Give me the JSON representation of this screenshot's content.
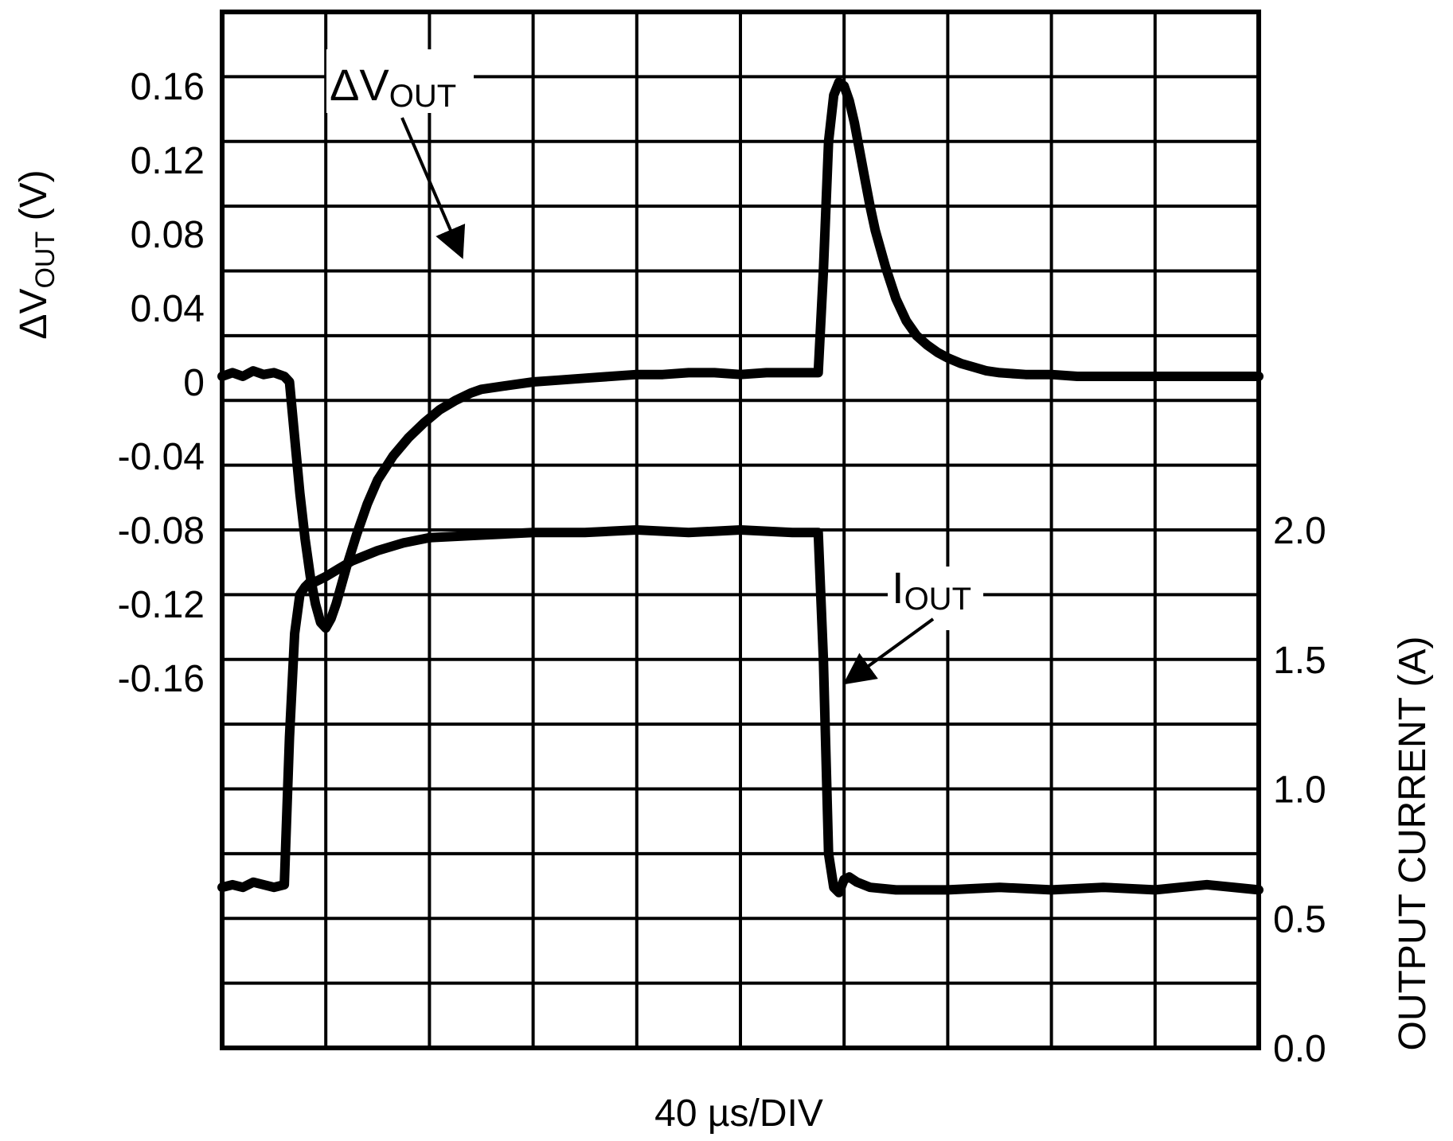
{
  "chart_data": {
    "type": "line",
    "title": "",
    "xlabel": "40 µs/DIV",
    "x_units": "µs",
    "x_per_div": 40,
    "x_range": [
      0,
      400
    ],
    "grid": true,
    "grid_divisions": {
      "x": 10,
      "y": 16
    },
    "left_axis": {
      "label_main": "ΔV",
      "label_sub": "OUT",
      "label_tail": " (V)",
      "ylim": [
        -0.36,
        0.2
      ],
      "ticks": [
        "0.16",
        "0.12",
        "0.08",
        "0.04",
        "0",
        "-0.04",
        "-0.08",
        "-0.12",
        "-0.16"
      ],
      "tick_values": [
        0.16,
        0.12,
        0.08,
        0.04,
        0,
        -0.04,
        -0.08,
        -0.12,
        -0.16
      ]
    },
    "right_axis": {
      "label": "OUTPUT CURRENT (A)",
      "ylim": [
        0.0,
        4.0
      ],
      "ticks": [
        "2.0",
        "1.5",
        "1.0",
        "0.5",
        "0.0"
      ],
      "tick_values": [
        2.0,
        1.5,
        1.0,
        0.5,
        0.0
      ]
    },
    "series": [
      {
        "name": "ΔVOUT",
        "axis": "left",
        "annotation_main": "ΔV",
        "annotation_sub": "OUT",
        "x": [
          0,
          4,
          8,
          12,
          16,
          20,
          24,
          26,
          28,
          30,
          32,
          34,
          36,
          38,
          40,
          42,
          44,
          48,
          52,
          56,
          60,
          66,
          72,
          78,
          84,
          90,
          96,
          100,
          110,
          120,
          130,
          140,
          150,
          160,
          170,
          180,
          190,
          200,
          210,
          220,
          230,
          232,
          234,
          236,
          238,
          240,
          242,
          244,
          246,
          248,
          250,
          252,
          256,
          260,
          264,
          268,
          272,
          276,
          280,
          285,
          290,
          295,
          300,
          310,
          320,
          330,
          340,
          350,
          360,
          370,
          380,
          390,
          400
        ],
        "y": [
          0.003,
          0.005,
          0.003,
          0.006,
          0.004,
          0.005,
          0.003,
          0.0,
          -0.03,
          -0.06,
          -0.085,
          -0.105,
          -0.12,
          -0.13,
          -0.133,
          -0.128,
          -0.12,
          -0.1,
          -0.082,
          -0.066,
          -0.053,
          -0.04,
          -0.03,
          -0.022,
          -0.015,
          -0.01,
          -0.006,
          -0.004,
          -0.002,
          0.0,
          0.001,
          0.002,
          0.003,
          0.004,
          0.004,
          0.005,
          0.005,
          0.004,
          0.005,
          0.005,
          0.005,
          0.06,
          0.13,
          0.155,
          0.162,
          0.16,
          0.152,
          0.14,
          0.125,
          0.11,
          0.095,
          0.082,
          0.062,
          0.045,
          0.033,
          0.025,
          0.02,
          0.016,
          0.013,
          0.01,
          0.008,
          0.006,
          0.005,
          0.004,
          0.004,
          0.003,
          0.003,
          0.003,
          0.003,
          0.003,
          0.003,
          0.003,
          0.003
        ]
      },
      {
        "name": "IOUT",
        "axis": "right",
        "annotation_main": "I",
        "annotation_sub": "OUT",
        "x": [
          0,
          4,
          8,
          12,
          16,
          20,
          24,
          26,
          28,
          30,
          32,
          34,
          36,
          40,
          45,
          50,
          60,
          70,
          80,
          100,
          120,
          140,
          160,
          180,
          200,
          220,
          230,
          232,
          234,
          236,
          238,
          240,
          242,
          245,
          250,
          260,
          280,
          300,
          320,
          340,
          360,
          380,
          400
        ],
        "y": [
          0.62,
          0.63,
          0.62,
          0.64,
          0.63,
          0.62,
          0.63,
          1.2,
          1.6,
          1.75,
          1.78,
          1.8,
          1.8,
          1.82,
          1.85,
          1.88,
          1.92,
          1.95,
          1.97,
          1.98,
          1.99,
          1.99,
          2.0,
          1.99,
          2.0,
          1.99,
          1.99,
          1.5,
          0.75,
          0.62,
          0.6,
          0.65,
          0.66,
          0.64,
          0.62,
          0.61,
          0.61,
          0.62,
          0.61,
          0.62,
          0.61,
          0.63,
          0.61
        ]
      }
    ]
  }
}
